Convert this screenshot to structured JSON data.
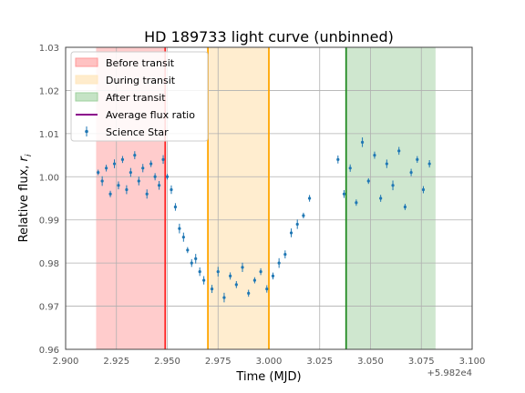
{
  "chart_data": {
    "type": "scatter",
    "title": "HD 189733 light curve (unbinned)",
    "xlabel": "Time (MJD)",
    "ylabel_main": "Relative flux, ",
    "ylabel_var": "r",
    "ylabel_sub": "i",
    "x_offset_label": "+5.982e4",
    "xlim": [
      2.9,
      3.1
    ],
    "ylim": [
      0.96,
      1.03
    ],
    "xticks": [
      "2.900",
      "2.925",
      "2.950",
      "2.975",
      "3.000",
      "3.025",
      "3.050",
      "3.075",
      "3.100"
    ],
    "xtick_values": [
      2.9,
      2.925,
      2.95,
      2.975,
      3.0,
      3.025,
      3.05,
      3.075,
      3.1
    ],
    "yticks": [
      "0.96",
      "0.97",
      "0.98",
      "0.99",
      "1.00",
      "1.01",
      "1.02",
      "1.03"
    ],
    "ytick_values": [
      0.96,
      0.97,
      0.98,
      0.99,
      1.0,
      1.01,
      1.02,
      1.03
    ],
    "grid": true,
    "legend_position": "top-left",
    "regions": [
      {
        "name": "Before transit",
        "x0": 2.915,
        "x1": 2.949,
        "fill": "#ff9999",
        "edge": "#ff2222"
      },
      {
        "name": "During transit",
        "x0": 2.97,
        "x1": 3.0,
        "fill": "#ffe7bf",
        "edge": "#ffa500"
      },
      {
        "name": "After transit",
        "x0": 3.038,
        "x1": 3.082,
        "fill": "#9fd09f",
        "edge": "#228b22"
      }
    ],
    "series": [
      {
        "name": "Average flux ratio",
        "color": "#8b008b"
      },
      {
        "name": "Science Star",
        "color": "#1f77b4"
      }
    ],
    "segments": [
      {
        "x0": 2.915,
        "x1": 2.949,
        "y": 1.0,
        "noise": 0.003
      },
      {
        "x0": 2.949,
        "x1": 2.97,
        "y": null,
        "noise": 0.003
      },
      {
        "x0": 2.97,
        "x1": 3.0,
        "y": 0.976,
        "noise": 0.003
      },
      {
        "x0": 3.0,
        "x1": 3.02,
        "y": null,
        "noise": 0.003
      },
      {
        "x0": 3.033,
        "x1": 3.082,
        "y": 0.999,
        "noise": 0.005
      }
    ],
    "points": [
      [
        2.916,
        1.001
      ],
      [
        2.918,
        0.999
      ],
      [
        2.92,
        1.002
      ],
      [
        2.922,
        0.996
      ],
      [
        2.924,
        1.003
      ],
      [
        2.926,
        0.998
      ],
      [
        2.928,
        1.004
      ],
      [
        2.93,
        0.997
      ],
      [
        2.932,
        1.001
      ],
      [
        2.934,
        1.005
      ],
      [
        2.936,
        0.999
      ],
      [
        2.938,
        1.002
      ],
      [
        2.94,
        0.996
      ],
      [
        2.942,
        1.003
      ],
      [
        2.944,
        1.0
      ],
      [
        2.946,
        0.998
      ],
      [
        2.948,
        1.004
      ],
      [
        2.95,
        1.0
      ],
      [
        2.952,
        0.997
      ],
      [
        2.954,
        0.993
      ],
      [
        2.956,
        0.988
      ],
      [
        2.958,
        0.986
      ],
      [
        2.96,
        0.983
      ],
      [
        2.962,
        0.98
      ],
      [
        2.964,
        0.981
      ],
      [
        2.966,
        0.978
      ],
      [
        2.968,
        0.976
      ],
      [
        2.972,
        0.974
      ],
      [
        2.975,
        0.978
      ],
      [
        2.978,
        0.972
      ],
      [
        2.981,
        0.977
      ],
      [
        2.984,
        0.975
      ],
      [
        2.987,
        0.979
      ],
      [
        2.99,
        0.973
      ],
      [
        2.993,
        0.976
      ],
      [
        2.996,
        0.978
      ],
      [
        2.999,
        0.974
      ],
      [
        3.002,
        0.977
      ],
      [
        3.005,
        0.98
      ],
      [
        3.008,
        0.982
      ],
      [
        3.011,
        0.987
      ],
      [
        3.014,
        0.989
      ],
      [
        3.017,
        0.991
      ],
      [
        3.02,
        0.995
      ],
      [
        3.034,
        1.004
      ],
      [
        3.037,
        0.996
      ],
      [
        3.04,
        1.002
      ],
      [
        3.043,
        0.994
      ],
      [
        3.046,
        1.008
      ],
      [
        3.049,
        0.999
      ],
      [
        3.052,
        1.005
      ],
      [
        3.055,
        0.995
      ],
      [
        3.058,
        1.003
      ],
      [
        3.061,
        0.998
      ],
      [
        3.064,
        1.006
      ],
      [
        3.067,
        0.993
      ],
      [
        3.07,
        1.001
      ],
      [
        3.073,
        1.004
      ],
      [
        3.076,
        0.997
      ],
      [
        3.079,
        1.003
      ]
    ]
  }
}
